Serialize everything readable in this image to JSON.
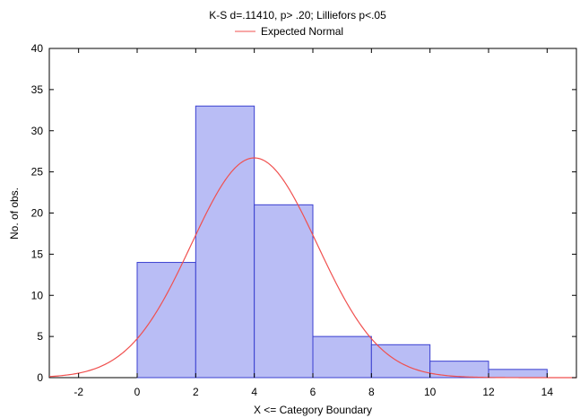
{
  "chart_data": {
    "type": "bar",
    "title": "K-S d=.11410, p> .20; Lilliefors p<.05",
    "xlabel": "X <= Category Boundary",
    "ylabel": "No. of obs.",
    "xlim": [
      -3,
      15
    ],
    "ylim": [
      0,
      40
    ],
    "x_ticks": [
      -2,
      0,
      2,
      4,
      6,
      8,
      10,
      12,
      14
    ],
    "y_ticks": [
      0,
      5,
      10,
      15,
      20,
      25,
      30,
      35,
      40
    ],
    "bins": [
      {
        "from": 0,
        "to": 2,
        "count": 14
      },
      {
        "from": 2,
        "to": 4,
        "count": 33
      },
      {
        "from": 4,
        "to": 6,
        "count": 21
      },
      {
        "from": 6,
        "to": 8,
        "count": 5
      },
      {
        "from": 8,
        "to": 10,
        "count": 4
      },
      {
        "from": 10,
        "to": 12,
        "count": 2
      },
      {
        "from": 12,
        "to": 14,
        "count": 1
      }
    ],
    "series": [
      {
        "name": "Expected Normal",
        "type": "line",
        "peak_x": 4.0,
        "peak_y": 26.7,
        "sigma": 2.15
      }
    ],
    "legend_position": "top",
    "grid": false,
    "colors": {
      "bar_fill": "#b9bdf5",
      "bar_stroke": "#3a3fd0",
      "curve": "#f0504f"
    }
  }
}
